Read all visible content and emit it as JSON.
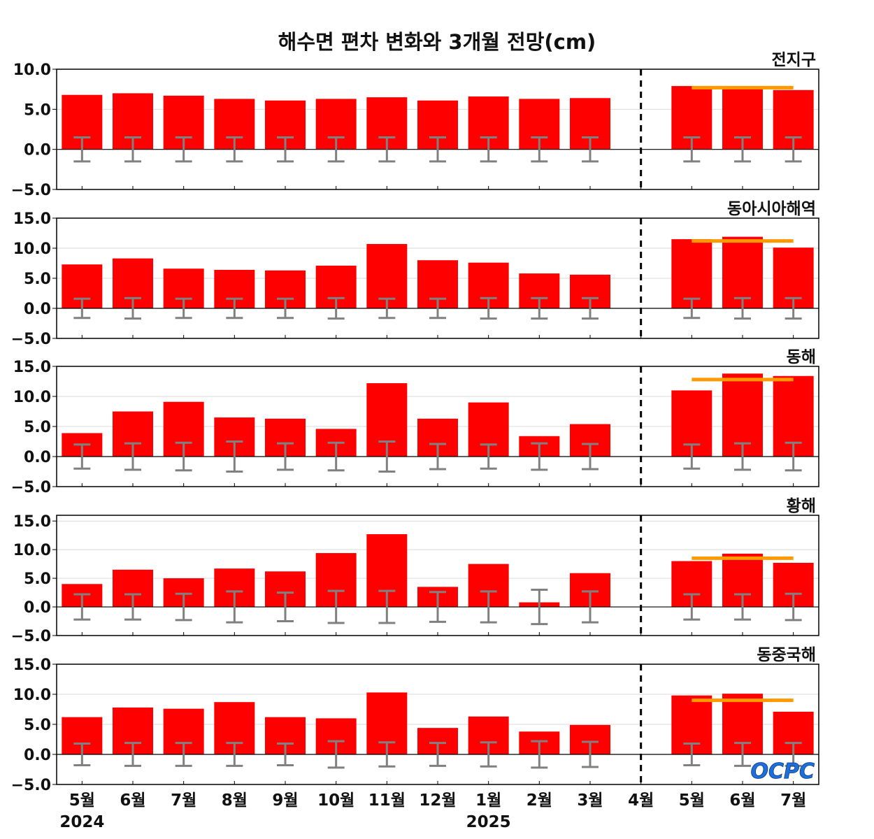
{
  "chart_data": {
    "type": "bar",
    "title": "해수면 편차 변화와 3개월 전망(cm)",
    "categories": [
      "5월",
      "6월",
      "7월",
      "8월",
      "9월",
      "10월",
      "11월",
      "12월",
      "1월",
      "2월",
      "3월",
      "4월",
      "5월",
      "6월",
      "7월"
    ],
    "year_labels": [
      {
        "label": "2024",
        "category_index": 0
      },
      {
        "label": "2025",
        "category_index": 8
      }
    ],
    "logo_text": "OCPC",
    "colors": {
      "bar": "#ff0000",
      "outlook_line": "#ff9900",
      "error_bar": "#808080",
      "divider": "#000000"
    },
    "divider_after_category": "4월",
    "panels": [
      {
        "region": "전지구",
        "ylim": [
          -5,
          10
        ],
        "yticks": [
          "10.0",
          "5.0",
          "0.0",
          "−5.0"
        ],
        "ytick_values": [
          10,
          5,
          0,
          -5
        ],
        "values": [
          6.8,
          7.0,
          6.7,
          6.3,
          6.1,
          6.3,
          6.5,
          6.1,
          6.6,
          6.3,
          6.4,
          null,
          7.9,
          7.6,
          7.4
        ],
        "error_range": [
          1.5,
          1.5,
          1.5,
          1.5,
          1.5,
          1.5,
          1.5,
          1.5,
          1.5,
          1.5,
          1.5,
          null,
          1.5,
          1.5,
          1.5
        ],
        "outlook_line": 7.7
      },
      {
        "region": "동아시아해역",
        "ylim": [
          -5,
          15
        ],
        "yticks": [
          "15.0",
          "10.0",
          "5.0",
          "0.0",
          "−5.0"
        ],
        "ytick_values": [
          15,
          10,
          5,
          0,
          -5
        ],
        "values": [
          7.3,
          8.3,
          6.6,
          6.4,
          6.3,
          7.1,
          10.7,
          8.0,
          7.6,
          5.8,
          5.6,
          null,
          11.5,
          11.9,
          10.1
        ],
        "error_range": [
          1.6,
          1.7,
          1.6,
          1.6,
          1.6,
          1.7,
          1.6,
          1.6,
          1.7,
          1.7,
          1.7,
          null,
          1.6,
          1.7,
          1.7
        ],
        "outlook_line": 11.2
      },
      {
        "region": "동해",
        "ylim": [
          -5,
          15
        ],
        "yticks": [
          "15.0",
          "10.0",
          "5.0",
          "0.0",
          "−5.0"
        ],
        "ytick_values": [
          15,
          10,
          5,
          0,
          -5
        ],
        "values": [
          3.9,
          7.5,
          9.1,
          6.5,
          6.3,
          4.6,
          12.2,
          6.3,
          9.0,
          3.4,
          5.4,
          null,
          11.0,
          13.8,
          13.4
        ],
        "error_range": [
          2.0,
          2.2,
          2.3,
          2.5,
          2.2,
          2.3,
          2.5,
          2.1,
          2.0,
          2.2,
          2.1,
          null,
          2.0,
          2.2,
          2.3
        ],
        "outlook_line": 12.8
      },
      {
        "region": "황해",
        "ylim": [
          -5,
          16
        ],
        "yticks": [
          "15.0",
          "10.0",
          "5.0",
          "0.0",
          "−5.0"
        ],
        "ytick_values": [
          15,
          10,
          5,
          0,
          -5
        ],
        "values": [
          4.0,
          6.5,
          5.0,
          6.7,
          6.2,
          9.4,
          12.7,
          3.5,
          7.5,
          0.8,
          5.9,
          null,
          8.0,
          9.3,
          7.7
        ],
        "error_range": [
          2.2,
          2.2,
          2.3,
          2.7,
          2.5,
          2.8,
          2.8,
          2.6,
          2.7,
          3.0,
          2.7,
          null,
          2.2,
          2.2,
          2.3
        ],
        "outlook_line": 8.5
      },
      {
        "region": "동중국해",
        "ylim": [
          -5,
          15
        ],
        "yticks": [
          "15.0",
          "10.0",
          "5.0",
          "0.0",
          "−5.0"
        ],
        "ytick_values": [
          15,
          10,
          5,
          0,
          -5
        ],
        "values": [
          6.2,
          7.8,
          7.6,
          8.7,
          6.2,
          6.0,
          10.3,
          4.4,
          6.3,
          3.8,
          4.9,
          null,
          9.8,
          10.1,
          7.1
        ],
        "error_range": [
          1.8,
          1.9,
          1.9,
          1.9,
          1.8,
          2.2,
          2.0,
          1.9,
          2.0,
          2.2,
          2.1,
          null,
          1.8,
          1.9,
          1.9
        ],
        "outlook_line": 9.0
      }
    ]
  }
}
